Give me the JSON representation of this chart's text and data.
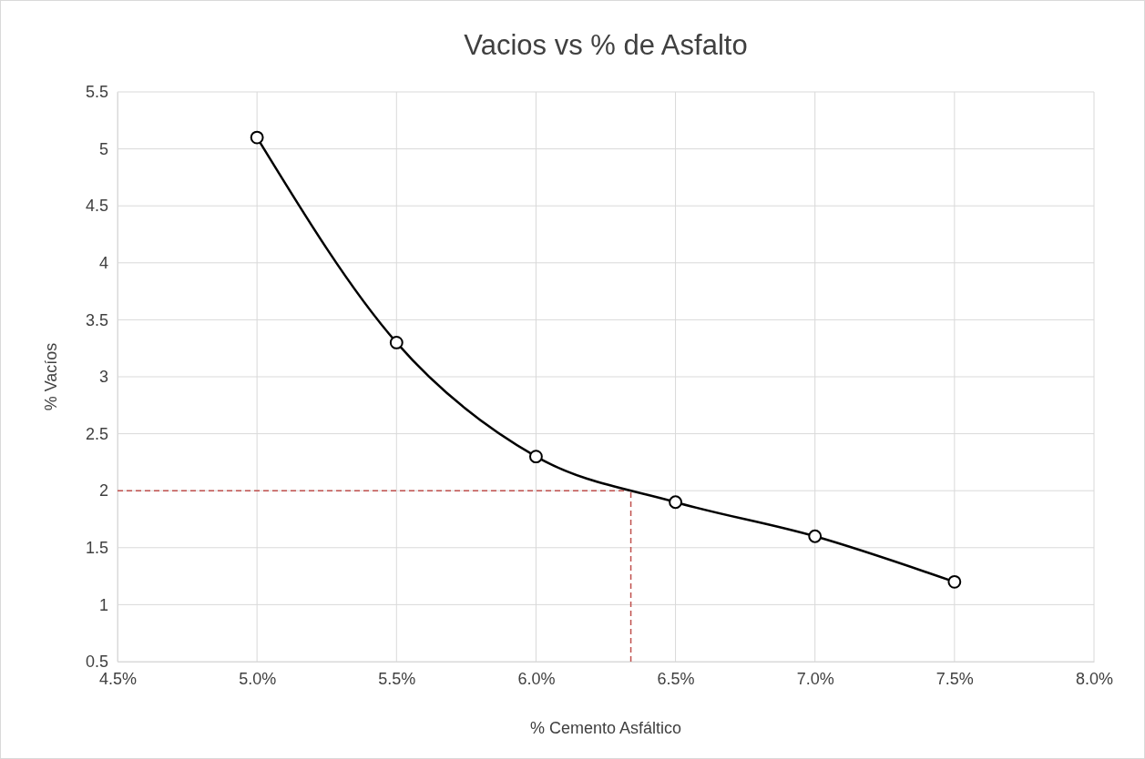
{
  "chart_data": {
    "type": "line",
    "title": "Vacios vs % de Asfalto",
    "xlabel": "% Cemento Asfáltico",
    "ylabel": "% Vacíos",
    "x": [
      5.0,
      5.5,
      6.0,
      6.5,
      7.0,
      7.5
    ],
    "series": [
      {
        "color": "#000000",
        "values": [
          5.1,
          3.3,
          2.3,
          1.9,
          1.6,
          1.2
        ],
        "marker": "circle",
        "line_style": "solid"
      }
    ],
    "ref_lines": [
      {
        "axis": "y",
        "value": 2,
        "color": "#c0504d",
        "line_style": "dashed"
      },
      {
        "axis": "x",
        "value": 6.34,
        "color": "#c0504d",
        "line_style": "dashed"
      }
    ],
    "xlim": [
      4.5,
      8.0
    ],
    "xticks": [
      {
        "value": 4.5,
        "label": "4.5%"
      },
      {
        "value": 5.0,
        "label": "5.0%"
      },
      {
        "value": 5.5,
        "label": "5.5%"
      },
      {
        "value": 6.0,
        "label": "6.0%"
      },
      {
        "value": 6.5,
        "label": "6.5%"
      },
      {
        "value": 7.0,
        "label": "7.0%"
      },
      {
        "value": 7.5,
        "label": "7.5%"
      },
      {
        "value": 8.0,
        "label": "8.0%"
      }
    ],
    "ylim": [
      0.5,
      5.5
    ],
    "yticks": [
      0.5,
      1,
      1.5,
      2,
      2.5,
      3,
      3.5,
      4,
      4.5,
      5,
      5.5
    ],
    "grid": true
  }
}
